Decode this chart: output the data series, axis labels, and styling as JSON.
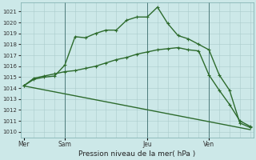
{
  "title": "Pression niveau de la mer( hPa )",
  "bg_color": "#cce8e8",
  "grid_color": "#aacccc",
  "line_color": "#2d6b2d",
  "ylim": [
    1009.5,
    1021.8
  ],
  "yticks": [
    1010,
    1011,
    1012,
    1013,
    1014,
    1015,
    1016,
    1017,
    1018,
    1019,
    1020,
    1021
  ],
  "day_labels": [
    "Mer",
    "Sam",
    "Jeu",
    "Ven"
  ],
  "day_positions": [
    0,
    4,
    12,
    18
  ],
  "total_points": 23,
  "xlim": [
    -0.3,
    22.3
  ],
  "line1_x": [
    0,
    1,
    2,
    3,
    4,
    5,
    6,
    7,
    8,
    9,
    10,
    11,
    12,
    13,
    14,
    15,
    16,
    17,
    18,
    19,
    20,
    21,
    22
  ],
  "line1_y": [
    1014.2,
    1014.8,
    1015.0,
    1015.1,
    1016.1,
    1018.7,
    1018.6,
    1019.0,
    1019.3,
    1019.3,
    1020.2,
    1020.5,
    1020.5,
    1021.4,
    1019.9,
    1018.8,
    1018.5,
    1018.0,
    1017.5,
    1015.2,
    1013.8,
    1010.8,
    1010.4
  ],
  "line2_x": [
    0,
    1,
    2,
    3,
    4,
    5,
    6,
    7,
    8,
    9,
    10,
    11,
    12,
    13,
    14,
    15,
    16,
    17,
    18,
    19,
    20,
    21,
    22
  ],
  "line2_y": [
    1014.2,
    1014.9,
    1015.1,
    1015.3,
    1015.5,
    1015.6,
    1015.8,
    1016.0,
    1016.3,
    1016.6,
    1016.8,
    1017.1,
    1017.3,
    1017.5,
    1017.6,
    1017.7,
    1017.5,
    1017.4,
    1015.2,
    1013.8,
    1012.5,
    1011.0,
    1010.5
  ],
  "line3_x": [
    0,
    22
  ],
  "line3_y": [
    1014.2,
    1010.2
  ],
  "vline_positions": [
    4,
    12,
    18
  ]
}
